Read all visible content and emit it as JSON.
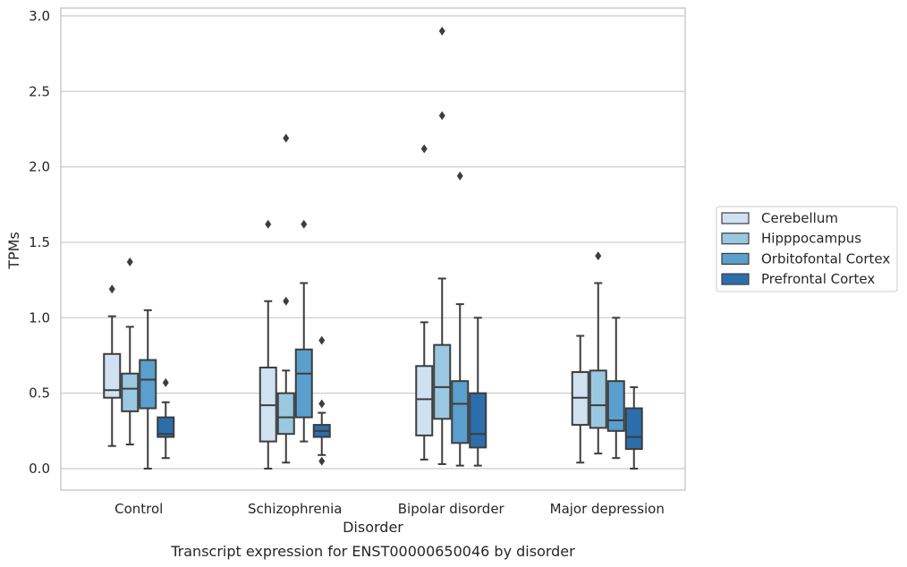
{
  "caption": "Transcript expression for ENST00000650046 by disorder",
  "chart_data": {
    "type": "box",
    "xlabel": "Disorder",
    "ylabel": "TPMs",
    "categories": [
      "Control",
      "Schizophrenia",
      "Bipolar disorder",
      "Major depression"
    ],
    "ylim": [
      -0.14,
      3.05
    ],
    "yticks": [
      0.0,
      0.5,
      1.0,
      1.5,
      2.0,
      2.5,
      3.0
    ],
    "ytick_labels": [
      "0.0",
      "0.5",
      "1.0",
      "1.5",
      "2.0",
      "2.5",
      "3.0"
    ],
    "grid": "horizontal",
    "legend_position": "right, outside",
    "series": [
      {
        "name": "Cerebellum",
        "color": "#d0e1f2",
        "boxes": [
          {
            "whislo": 0.15,
            "q1": 0.47,
            "med": 0.52,
            "q3": 0.76,
            "whishi": 1.01,
            "fliers": [
              1.19
            ]
          },
          {
            "whislo": 0.0,
            "q1": 0.18,
            "med": 0.42,
            "q3": 0.67,
            "whishi": 1.11,
            "fliers": [
              1.62
            ]
          },
          {
            "whislo": 0.06,
            "q1": 0.22,
            "med": 0.46,
            "q3": 0.68,
            "whishi": 0.97,
            "fliers": [
              2.12
            ]
          },
          {
            "whislo": 0.04,
            "q1": 0.29,
            "med": 0.47,
            "q3": 0.64,
            "whishi": 0.88,
            "fliers": []
          }
        ]
      },
      {
        "name": "Hipppocampus",
        "color": "#9ac8e0",
        "boxes": [
          {
            "whislo": 0.16,
            "q1": 0.38,
            "med": 0.53,
            "q3": 0.63,
            "whishi": 0.94,
            "fliers": [
              1.37
            ]
          },
          {
            "whislo": 0.04,
            "q1": 0.23,
            "med": 0.34,
            "q3": 0.5,
            "whishi": 0.65,
            "fliers": [
              1.11,
              2.19
            ]
          },
          {
            "whislo": 0.03,
            "q1": 0.33,
            "med": 0.54,
            "q3": 0.82,
            "whishi": 1.26,
            "fliers": [
              2.34,
              2.9
            ]
          },
          {
            "whislo": 0.1,
            "q1": 0.27,
            "med": 0.42,
            "q3": 0.65,
            "whishi": 1.23,
            "fliers": [
              1.41
            ]
          }
        ]
      },
      {
        "name": "Orbitofontal Cortex",
        "color": "#5a9fcd",
        "boxes": [
          {
            "whislo": 0.0,
            "q1": 0.4,
            "med": 0.59,
            "q3": 0.72,
            "whishi": 1.05,
            "fliers": []
          },
          {
            "whislo": 0.18,
            "q1": 0.34,
            "med": 0.63,
            "q3": 0.79,
            "whishi": 1.23,
            "fliers": [
              1.62
            ]
          },
          {
            "whislo": 0.02,
            "q1": 0.17,
            "med": 0.43,
            "q3": 0.58,
            "whishi": 1.09,
            "fliers": [
              1.94
            ]
          },
          {
            "whislo": 0.07,
            "q1": 0.25,
            "med": 0.32,
            "q3": 0.58,
            "whishi": 1.0,
            "fliers": []
          }
        ]
      },
      {
        "name": "Prefrontal Cortex",
        "color": "#2c6eab",
        "boxes": [
          {
            "whislo": 0.07,
            "q1": 0.21,
            "med": 0.23,
            "q3": 0.34,
            "whishi": 0.44,
            "fliers": [
              0.57
            ]
          },
          {
            "whislo": 0.09,
            "q1": 0.21,
            "med": 0.25,
            "q3": 0.29,
            "whishi": 0.37,
            "fliers": [
              0.85,
              0.43,
              0.05
            ]
          },
          {
            "whislo": 0.02,
            "q1": 0.14,
            "med": 0.23,
            "q3": 0.5,
            "whishi": 1.0,
            "fliers": []
          },
          {
            "whislo": 0.0,
            "q1": 0.13,
            "med": 0.21,
            "q3": 0.4,
            "whishi": 0.54,
            "fliers": []
          }
        ]
      }
    ]
  }
}
